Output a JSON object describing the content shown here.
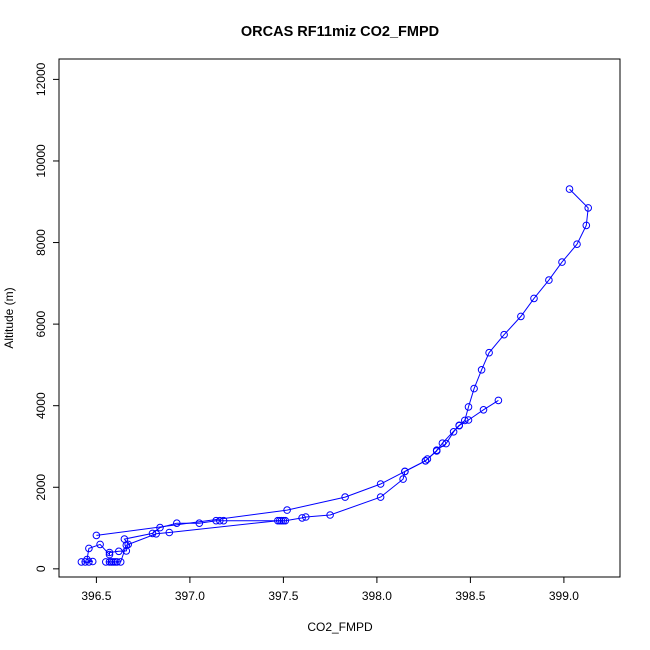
{
  "chart_data": {
    "type": "line",
    "title": "ORCAS RF11miz CO2_FMPD",
    "xlabel": "CO2_FMPD",
    "ylabel": "Altitude (m)",
    "xlim": [
      396.3,
      399.3
    ],
    "ylim": [
      -200,
      12500
    ],
    "xticks": [
      396.5,
      397.0,
      397.5,
      398.0,
      398.5,
      399.0
    ],
    "xtick_labels": [
      "396.5",
      "397.0",
      "397.5",
      "398.0",
      "398.5",
      "399.0"
    ],
    "yticks": [
      0,
      2000,
      4000,
      6000,
      8000,
      10000,
      12000
    ],
    "ytick_labels": [
      "0",
      "2000",
      "4000",
      "6000",
      "8000",
      "10000",
      "12000"
    ],
    "color": "#0000ff",
    "series": [
      {
        "points": [
          [
            396.42,
            170
          ],
          [
            396.44,
            170
          ],
          [
            396.46,
            170
          ],
          [
            396.48,
            180
          ],
          [
            396.45,
            230
          ],
          [
            396.46,
            500
          ],
          [
            396.52,
            600
          ],
          [
            396.57,
            350
          ],
          [
            396.57,
            400
          ],
          [
            396.62,
            430
          ],
          [
            396.66,
            440
          ],
          [
            396.67,
            600
          ],
          [
            396.65,
            730
          ],
          [
            396.8,
            870
          ],
          [
            396.84,
            1010
          ],
          [
            396.93,
            1120
          ],
          [
            397.05,
            1120
          ],
          [
            397.14,
            1180
          ],
          [
            397.16,
            1180
          ],
          [
            397.18,
            1180
          ],
          [
            397.48,
            1180
          ],
          [
            397.49,
            1180
          ],
          [
            397.51,
            1180
          ],
          [
            397.6,
            1250
          ],
          [
            397.62,
            1270
          ],
          [
            397.75,
            1320
          ],
          [
            398.02,
            1760
          ],
          [
            398.14,
            2200
          ],
          [
            398.15,
            2390
          ],
          [
            398.26,
            2650
          ],
          [
            398.27,
            2690
          ],
          [
            398.32,
            2890
          ],
          [
            398.32,
            2910
          ],
          [
            398.37,
            3070
          ],
          [
            398.41,
            3360
          ],
          [
            398.44,
            3510
          ],
          [
            398.47,
            3640
          ],
          [
            398.49,
            3970
          ],
          [
            398.52,
            4420
          ],
          [
            398.56,
            4880
          ],
          [
            398.6,
            5300
          ],
          [
            398.68,
            5740
          ],
          [
            398.77,
            6190
          ],
          [
            398.84,
            6630
          ],
          [
            398.92,
            7080
          ],
          [
            398.99,
            7520
          ],
          [
            399.07,
            7960
          ],
          [
            399.12,
            8420
          ],
          [
            399.13,
            8850
          ],
          [
            399.03,
            9310
          ]
        ]
      },
      {
        "points": [
          [
            396.5,
            820
          ],
          [
            397.52,
            1440
          ],
          [
            397.83,
            1760
          ],
          [
            398.02,
            2080
          ],
          [
            398.15,
            2390
          ],
          [
            398.26,
            2650
          ],
          [
            398.32,
            2900
          ],
          [
            398.35,
            3080
          ],
          [
            398.44,
            3520
          ],
          [
            398.49,
            3650
          ],
          [
            398.57,
            3900
          ],
          [
            398.65,
            4130
          ]
        ]
      },
      {
        "points": [
          [
            396.55,
            170
          ],
          [
            396.57,
            170
          ],
          [
            396.58,
            170
          ],
          [
            396.59,
            170
          ],
          [
            396.6,
            170
          ],
          [
            396.61,
            170
          ],
          [
            396.63,
            170
          ],
          [
            396.66,
            580
          ],
          [
            396.82,
            860
          ],
          [
            396.89,
            890
          ],
          [
            397.47,
            1180
          ],
          [
            397.5,
            1180
          ]
        ]
      }
    ]
  }
}
